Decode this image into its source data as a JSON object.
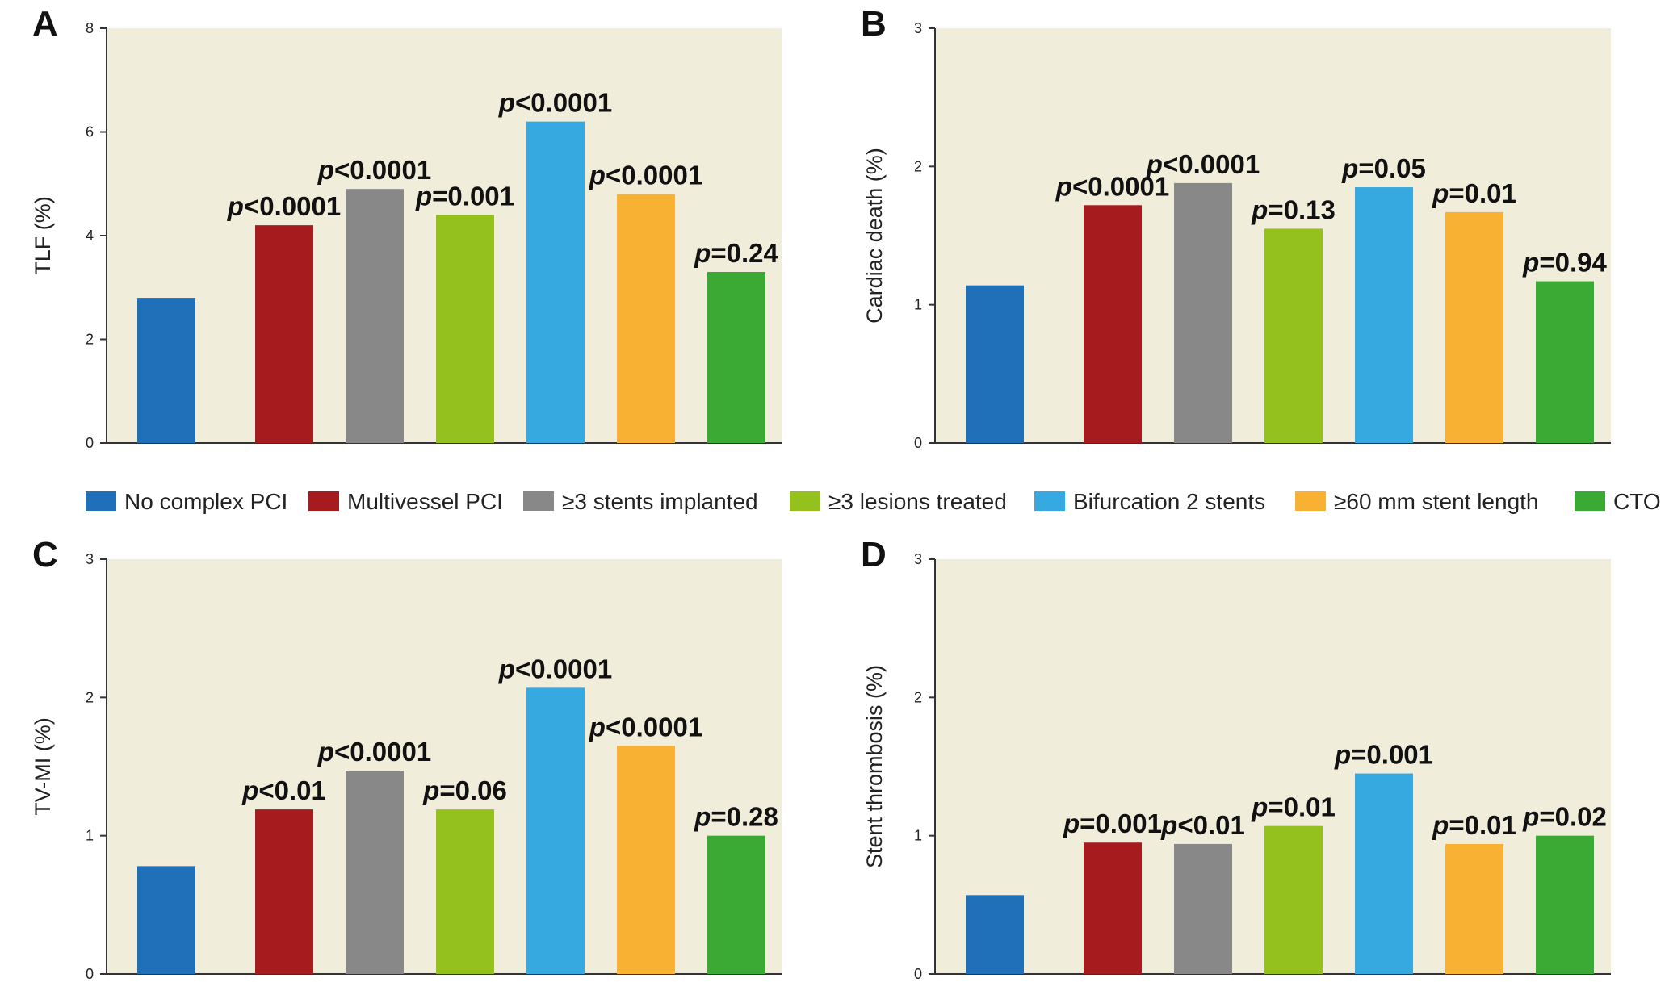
{
  "colors": {
    "plot_background": "#f1eddb",
    "axis": "#333333"
  },
  "legend": [
    {
      "label": "No complex PCI",
      "color": "#1f70b8"
    },
    {
      "label": "Multivessel PCI",
      "color": "#a61b1d"
    },
    {
      "label": "≥3 stents implanted",
      "color": "#888888"
    },
    {
      "label": "≥3 lesions treated",
      "color": "#95c11f"
    },
    {
      "label": "Bifurcation 2 stents",
      "color": "#36a9e1"
    },
    {
      "label": "≥60 mm stent length",
      "color": "#f8b133"
    },
    {
      "label": "CTO",
      "color": "#3aaa35"
    }
  ],
  "chart_data": [
    {
      "type": "bar",
      "panel": "A",
      "ylabel": "TLF (%)",
      "ylim": [
        0,
        8
      ],
      "yticks": [
        "0",
        "2",
        "4",
        "6",
        "8"
      ],
      "categories": [
        "No complex PCI",
        "Multivessel PCI",
        "≥3 stents implanted",
        "≥3 lesions treated",
        "Bifurcation 2 stents",
        "≥60 mm stent length",
        "CTO"
      ],
      "values": [
        2.8,
        4.2,
        4.9,
        4.4,
        6.2,
        4.8,
        3.3
      ],
      "p_labels": [
        "",
        "<0.0001",
        "<0.0001",
        "=0.001",
        "<0.0001",
        "<0.0001",
        "=0.24"
      ]
    },
    {
      "type": "bar",
      "panel": "B",
      "ylabel": "Cardiac death (%)",
      "ylim": [
        0,
        3
      ],
      "yticks": [
        "0",
        "1",
        "2",
        "3"
      ],
      "categories": [
        "No complex PCI",
        "Multivessel PCI",
        "≥3 stents implanted",
        "≥3 lesions treated",
        "Bifurcation 2 stents",
        "≥60 mm stent length",
        "CTO"
      ],
      "values": [
        1.14,
        1.72,
        1.88,
        1.55,
        1.85,
        1.67,
        1.17
      ],
      "p_labels": [
        "",
        "<0.0001",
        "<0.0001",
        "=0.13",
        "=0.05",
        "=0.01",
        "=0.94"
      ]
    },
    {
      "type": "bar",
      "panel": "C",
      "ylabel": "TV-MI (%)",
      "ylim": [
        0,
        3
      ],
      "yticks": [
        "0",
        "1",
        "2",
        "3"
      ],
      "categories": [
        "No complex PCI",
        "Multivessel PCI",
        "≥3 stents implanted",
        "≥3 lesions treated",
        "Bifurcation 2 stents",
        "≥60 mm stent length",
        "CTO"
      ],
      "values": [
        0.78,
        1.19,
        1.47,
        1.19,
        2.07,
        1.65,
        1.0
      ],
      "p_labels": [
        "",
        "<0.01",
        "<0.0001",
        "=0.06",
        "<0.0001",
        "<0.0001",
        "=0.28"
      ]
    },
    {
      "type": "bar",
      "panel": "D",
      "ylabel": "Stent thrombosis (%)",
      "ylim": [
        0,
        3
      ],
      "yticks": [
        "0",
        "1",
        "2",
        "3"
      ],
      "categories": [
        "No complex PCI",
        "Multivessel PCI",
        "≥3 stents implanted",
        "≥3 lesions treated",
        "Bifurcation 2 stents",
        "≥60 mm stent length",
        "CTO"
      ],
      "values": [
        0.57,
        0.95,
        0.94,
        1.07,
        1.45,
        0.94,
        1.0
      ],
      "p_labels": [
        "",
        "=0.001",
        "<0.01",
        "=0.01",
        "=0.001",
        "=0.01",
        "=0.02"
      ]
    }
  ]
}
